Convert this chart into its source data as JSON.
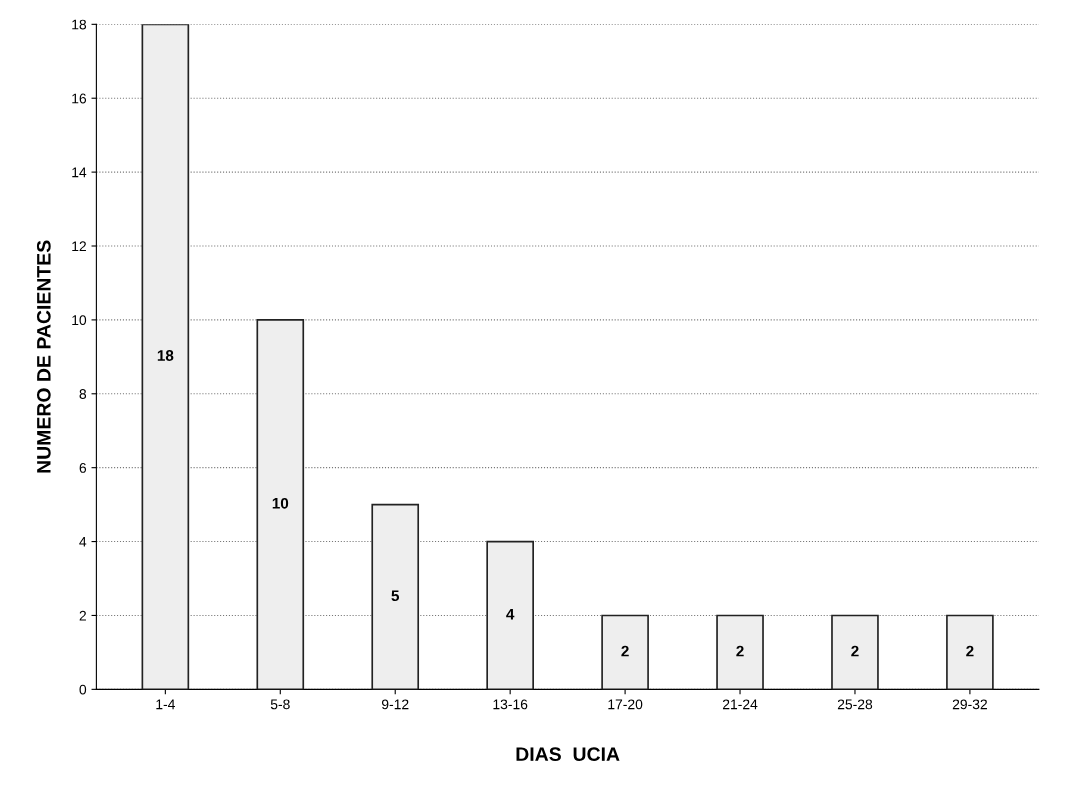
{
  "chart_data": {
    "type": "bar",
    "xlabel": "DIAS  UCIA",
    "ylabel": "NUMERO DE PACIENTES",
    "categories": [
      "1-4",
      "5-8",
      "9-12",
      "13-16",
      "17-20",
      "21-24",
      "25-28",
      "29-32"
    ],
    "values": [
      18,
      10,
      5,
      4,
      2,
      2,
      2,
      2
    ],
    "color": "#eeeeee",
    "ylim": [
      0,
      18
    ],
    "yticks": [
      0,
      2,
      4,
      6,
      8,
      10,
      12,
      14,
      16,
      18
    ],
    "grid": "y",
    "data_labels": true
  }
}
